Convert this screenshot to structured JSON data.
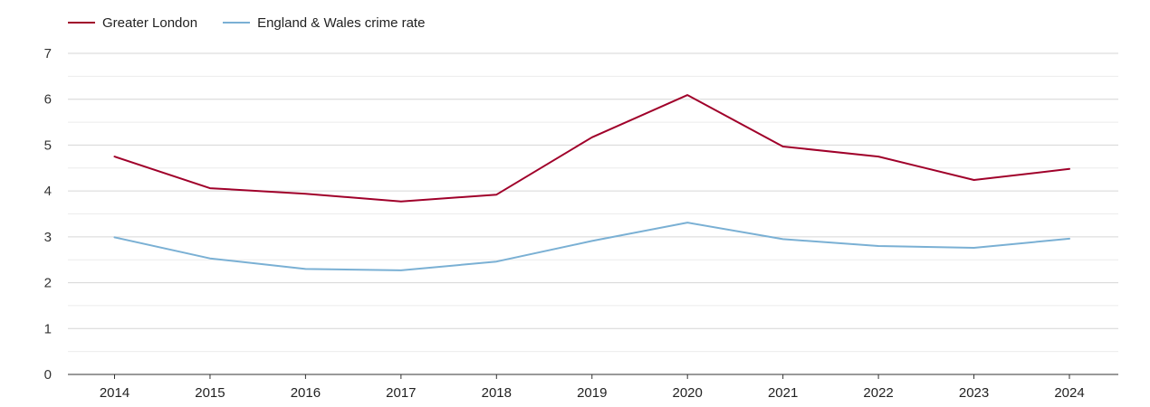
{
  "chart_data": {
    "type": "line",
    "title": "",
    "xlabel": "",
    "ylabel": "",
    "ylim": [
      0,
      7
    ],
    "yticks": [
      0,
      1,
      2,
      3,
      4,
      5,
      6,
      7
    ],
    "minor_gridlines_at_half_units": true,
    "grid": true,
    "legend_position": "top-left",
    "x": [
      "2014",
      "2015",
      "2016",
      "2017",
      "2018",
      "2019",
      "2020",
      "2021",
      "2022",
      "2023",
      "2024"
    ],
    "series": [
      {
        "name": "Greater London",
        "color": "#a0002a",
        "values": [
          4.75,
          4.06,
          3.94,
          3.77,
          3.92,
          5.17,
          6.09,
          4.97,
          4.75,
          4.24,
          4.48
        ]
      },
      {
        "name": "England & Wales crime rate",
        "color": "#7ab0d4",
        "values": [
          2.99,
          2.53,
          2.3,
          2.27,
          2.46,
          2.91,
          3.31,
          2.95,
          2.8,
          2.76,
          2.96
        ]
      }
    ]
  }
}
